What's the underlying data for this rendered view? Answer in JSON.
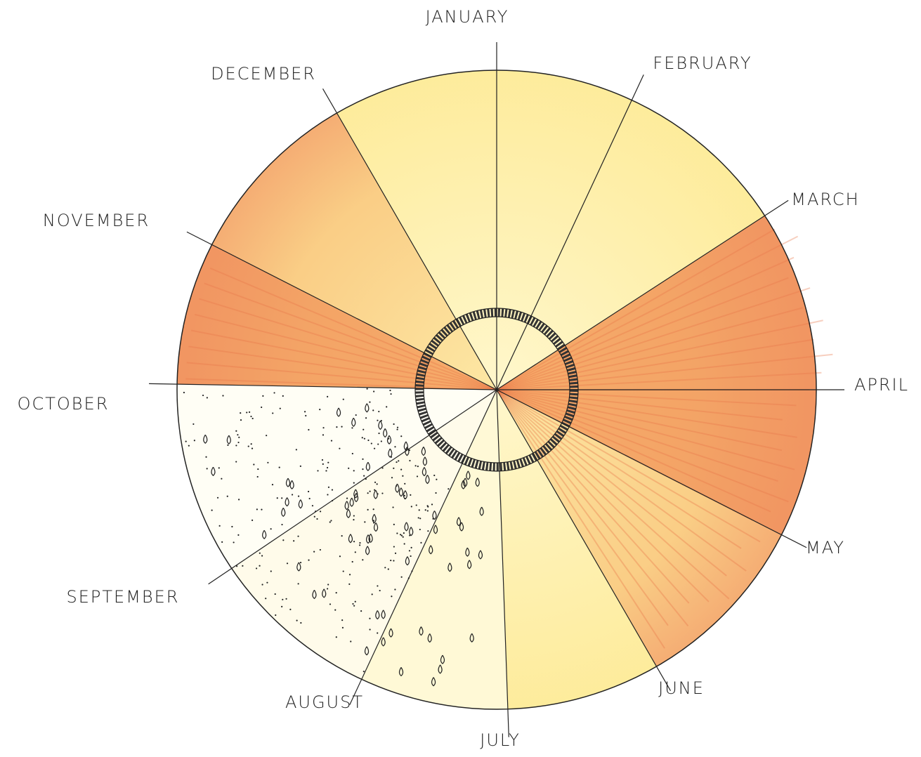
{
  "months": [
    "JANUARY",
    "FEBRUARY",
    "MARCH",
    "APRIL",
    "MAY",
    "JUNE",
    "JULY",
    "AUGUST",
    "SEPTEMBER",
    "OCTOBER",
    "NOVEMBER",
    "DECEMBER"
  ]
}
